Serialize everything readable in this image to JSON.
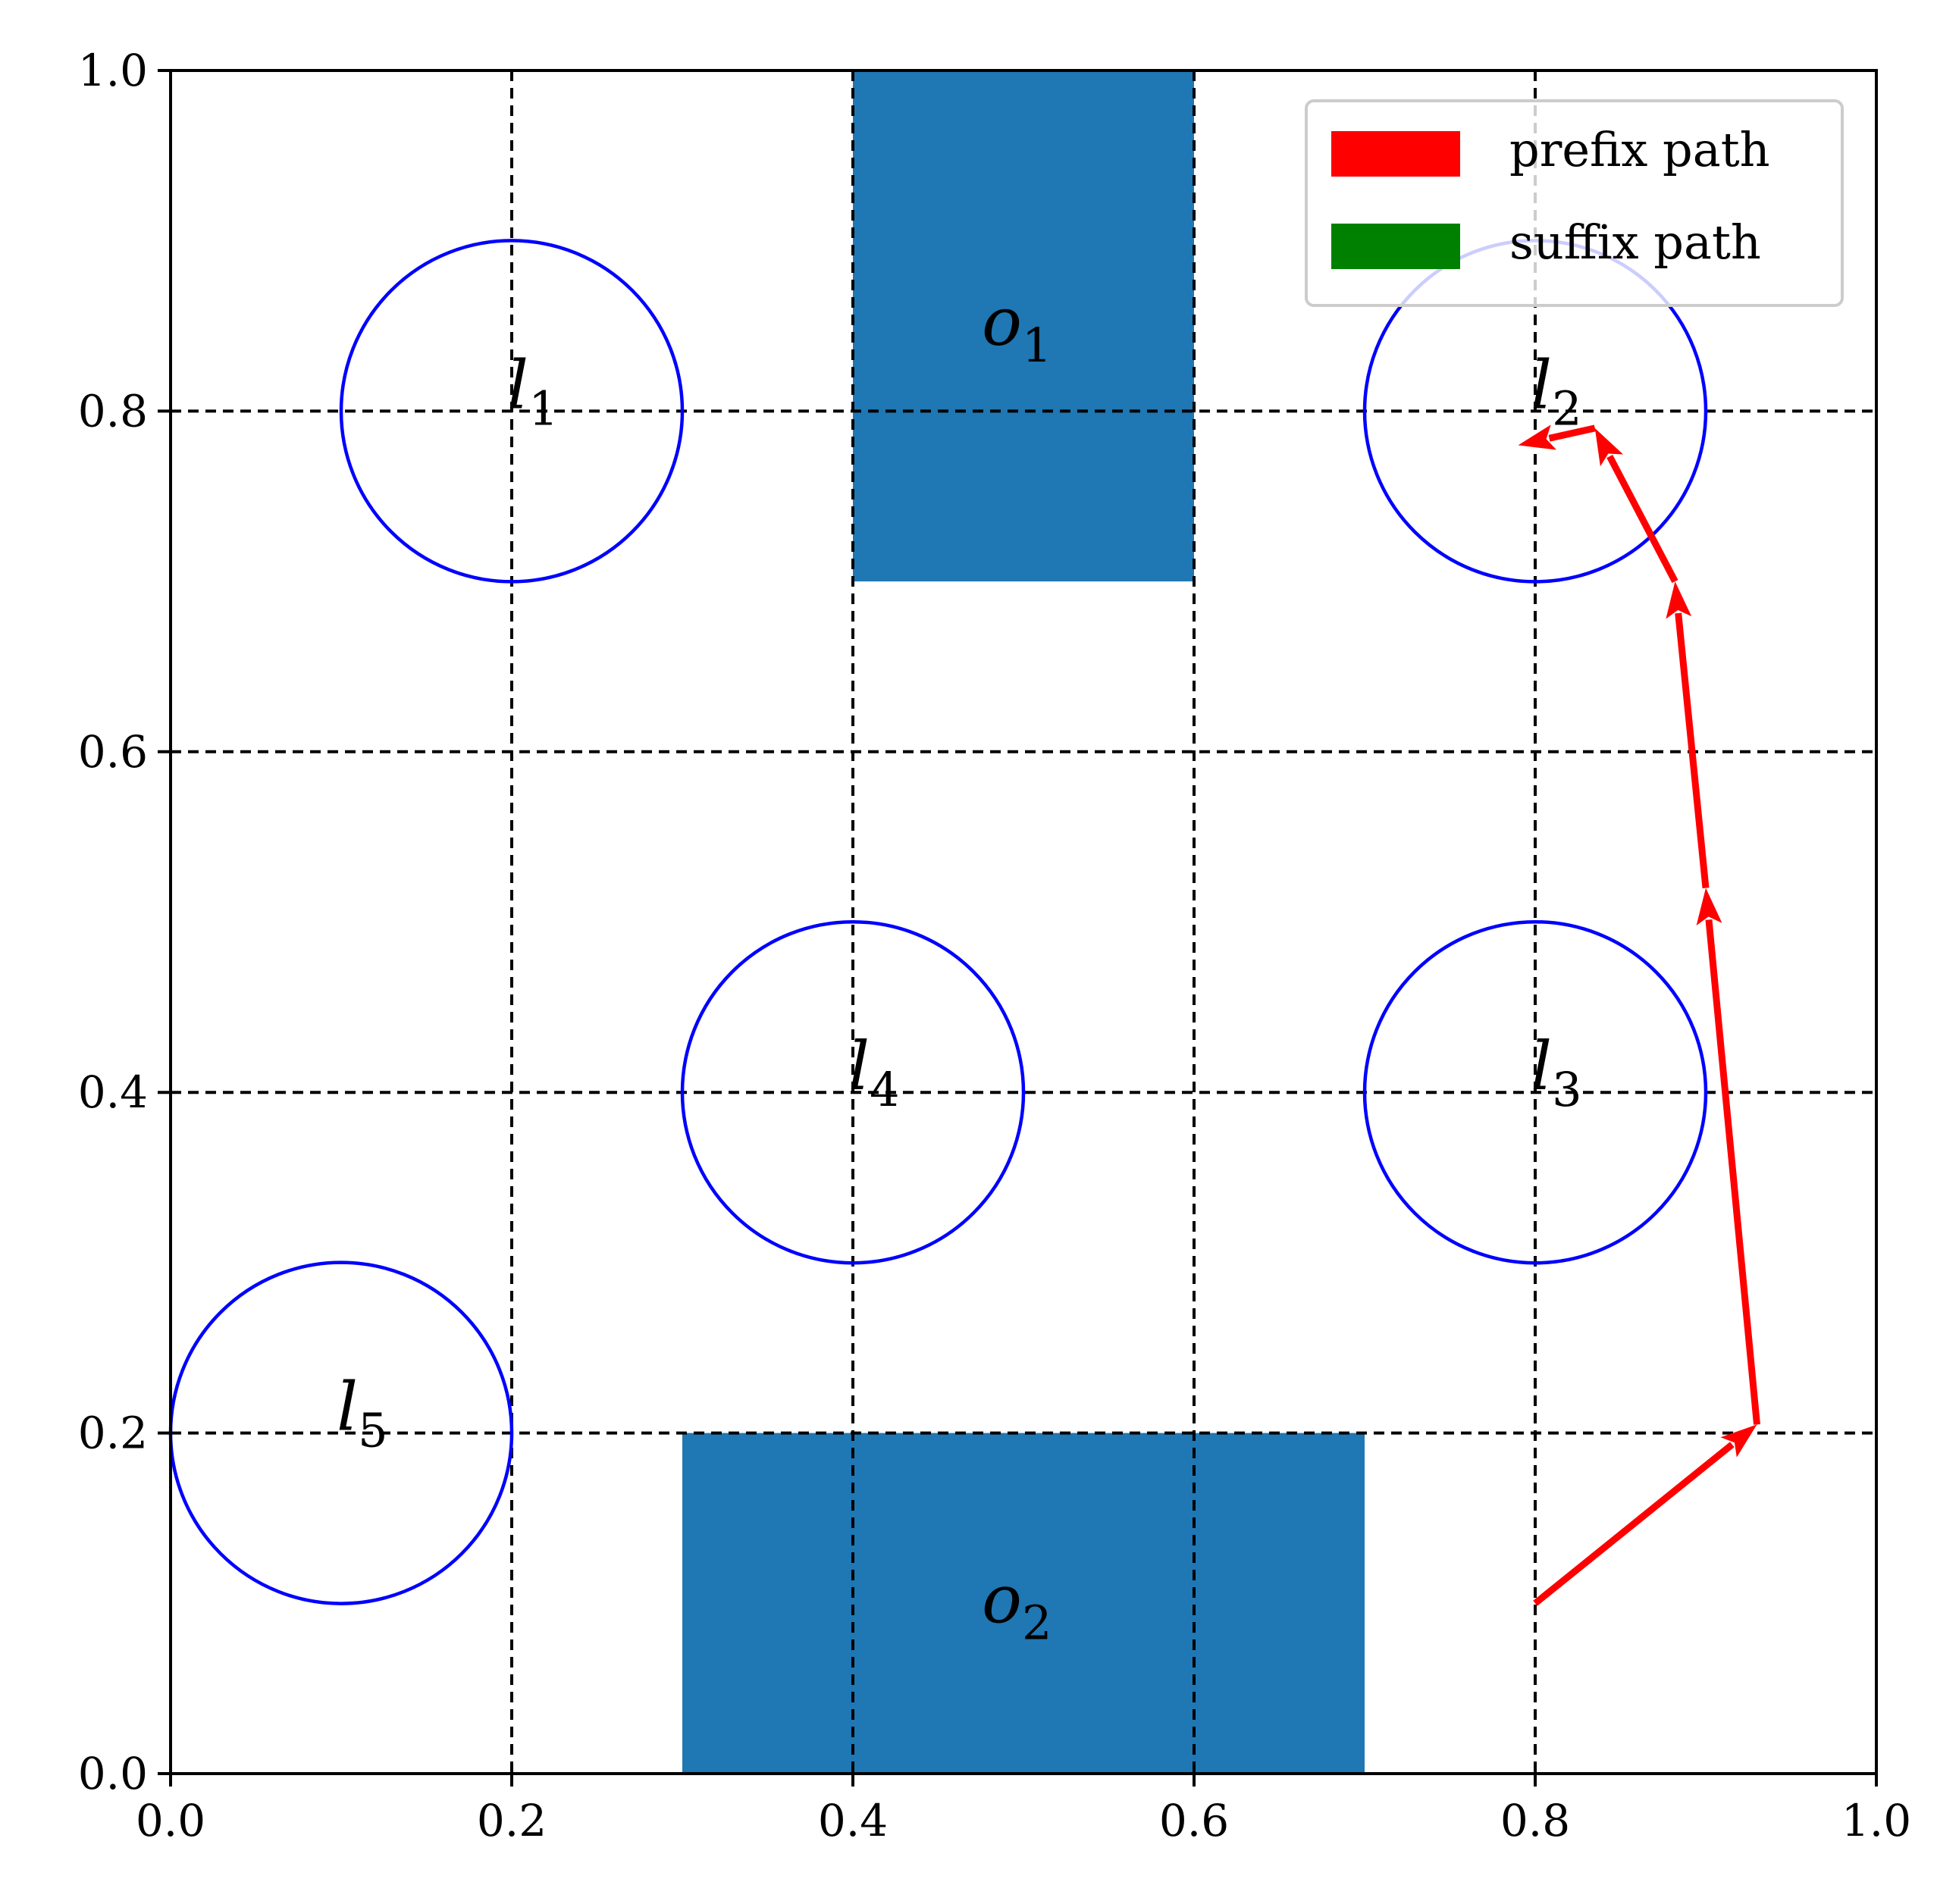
{
  "chart_data": {
    "type": "scatter",
    "title": "",
    "xlabel": "",
    "ylabel": "",
    "xlim": [
      0.0,
      1.0
    ],
    "ylim": [
      0.0,
      1.0
    ],
    "grid": true,
    "x_ticks": [
      "0.0",
      "0.2",
      "0.4",
      "0.6",
      "0.8",
      "1.0"
    ],
    "y_ticks": [
      "0.0",
      "0.2",
      "0.4",
      "0.6",
      "0.8",
      "1.0"
    ],
    "regions": [
      {
        "name": "l",
        "subscript": "1",
        "shape": "circle",
        "center": [
          0.2,
          0.8
        ],
        "radius": 0.1,
        "color": "#0000ff"
      },
      {
        "name": "l",
        "subscript": "2",
        "shape": "circle",
        "center": [
          0.8,
          0.8
        ],
        "radius": 0.1,
        "color": "#0000ff"
      },
      {
        "name": "l",
        "subscript": "3",
        "shape": "circle",
        "center": [
          0.8,
          0.4
        ],
        "radius": 0.1,
        "color": "#0000ff"
      },
      {
        "name": "l",
        "subscript": "4",
        "shape": "circle",
        "center": [
          0.4,
          0.4
        ],
        "radius": 0.1,
        "color": "#0000ff"
      },
      {
        "name": "l",
        "subscript": "5",
        "shape": "circle",
        "center": [
          0.1,
          0.2
        ],
        "radius": 0.1,
        "color": "#0000ff"
      }
    ],
    "obstacles": [
      {
        "name": "o",
        "subscript": "1",
        "x_range": [
          0.4,
          0.6
        ],
        "y_range": [
          0.7,
          1.0
        ],
        "color": "#1f77b4"
      },
      {
        "name": "o",
        "subscript": "2",
        "x_range": [
          0.3,
          0.7
        ],
        "y_range": [
          0.0,
          0.2
        ],
        "color": "#1f77b4"
      }
    ],
    "paths": [
      {
        "name": "prefix path",
        "color": "#ff0000",
        "points": [
          [
            0.8,
            0.1
          ],
          [
            0.93,
            0.205
          ],
          [
            0.9,
            0.52
          ],
          [
            0.882,
            0.7
          ],
          [
            0.835,
            0.79
          ],
          [
            0.79,
            0.78
          ]
        ]
      }
    ],
    "legend": {
      "position": "top-right",
      "entries": [
        {
          "label": "prefix path",
          "color": "#ff0000"
        },
        {
          "label": "suffix path",
          "color": "#008000"
        }
      ]
    }
  }
}
